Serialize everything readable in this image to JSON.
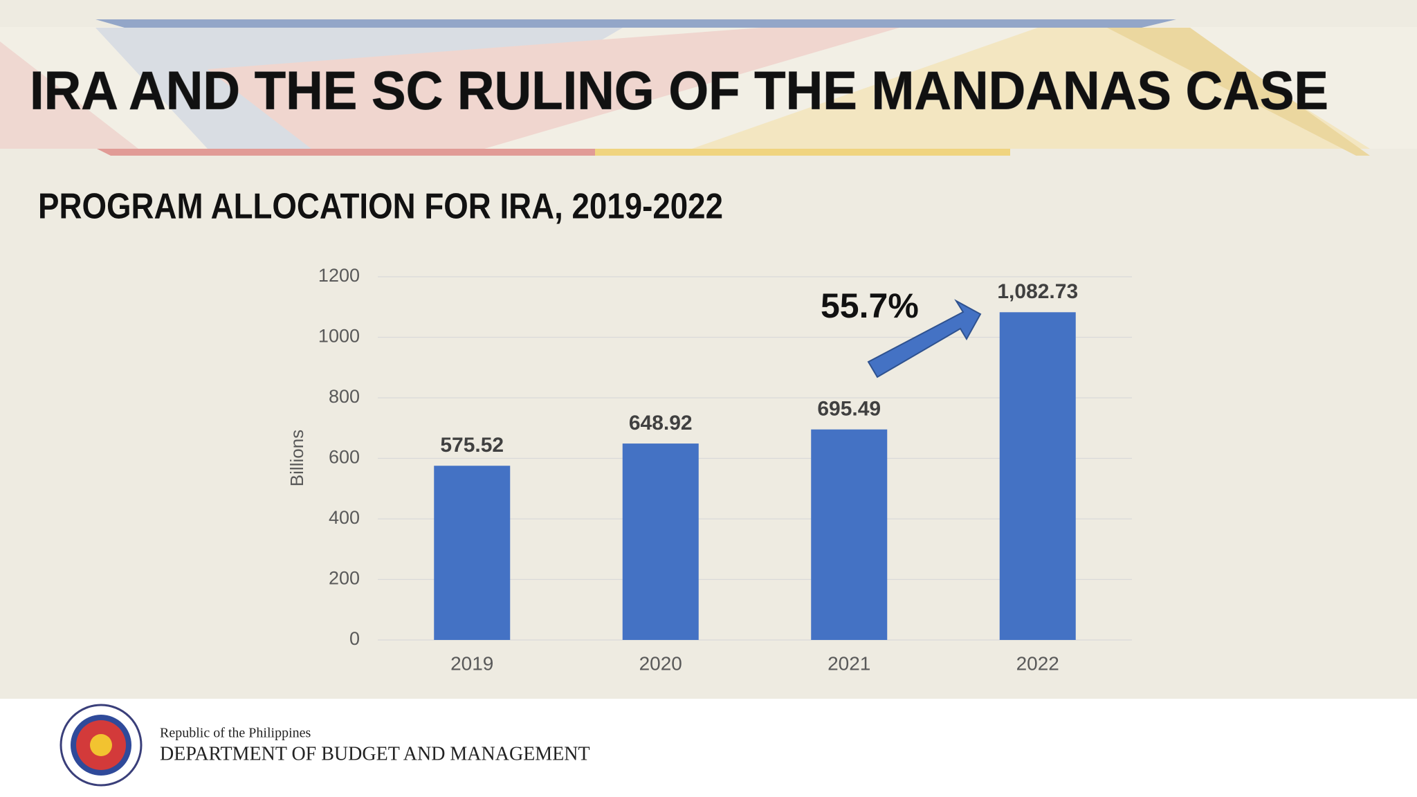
{
  "header": {
    "title": "IRA AND THE SC RULING OF THE MANDANAS CASE"
  },
  "chart_data": {
    "type": "bar",
    "title": "PROGRAM ALLOCATION FOR IRA, 2019-2022",
    "y_label": "Billions",
    "categories": [
      "2019",
      "2020",
      "2021",
      "2022"
    ],
    "values": [
      575.52,
      648.92,
      695.49,
      1082.73
    ],
    "value_labels": [
      "575.52",
      "648.92",
      "695.49",
      "1,082.73"
    ],
    "color": "#4472c4",
    "ylim": [
      0,
      1200
    ],
    "yticks": [
      0,
      200,
      400,
      600,
      800,
      1000,
      1200
    ],
    "grid": true,
    "annotation": "55.7%"
  },
  "footer": {
    "line1": "Republic of the Philippines",
    "line2": "DEPARTMENT OF BUDGET AND MANAGEMENT"
  }
}
